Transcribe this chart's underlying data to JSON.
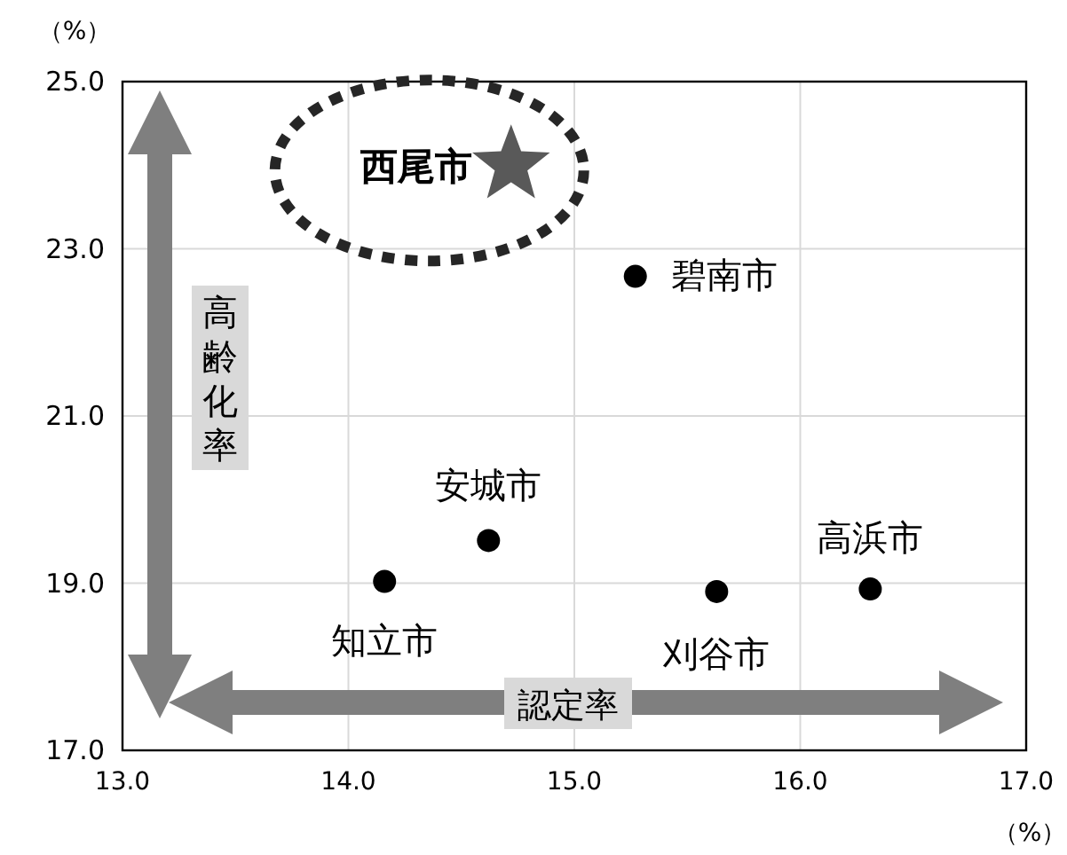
{
  "chart_data": {
    "type": "scatter",
    "xlabel": "認定率",
    "ylabel": "高齢化率",
    "annotations": [
      "（%）",
      "（%）"
    ],
    "series": [
      {
        "name": "西尾市",
        "x": [
          14.72
        ],
        "values": [
          24.0
        ],
        "color": "#595959",
        "marker": "star"
      },
      {
        "name": "碧南市",
        "x": [
          15.27
        ],
        "values": [
          22.67
        ],
        "color": "#000000",
        "marker": "circle"
      },
      {
        "name": "安城市",
        "x": [
          14.62
        ],
        "values": [
          19.51
        ],
        "color": "#000000",
        "marker": "circle"
      },
      {
        "name": "知立市",
        "x": [
          14.16
        ],
        "values": [
          19.02
        ],
        "color": "#000000",
        "marker": "circle"
      },
      {
        "name": "刈谷市",
        "x": [
          15.63
        ],
        "values": [
          18.9
        ],
        "color": "#000000",
        "marker": "circle"
      },
      {
        "name": "高浜市",
        "x": [
          16.31
        ],
        "values": [
          18.93
        ],
        "color": "#000000",
        "marker": "circle"
      }
    ],
    "xlim": [
      13,
      17
    ],
    "ylim": [
      17,
      25
    ],
    "xticks": [
      {
        "value": 13,
        "label": "13.0"
      },
      {
        "value": 14,
        "label": "14.0"
      },
      {
        "value": 15,
        "label": "15.0"
      },
      {
        "value": 16,
        "label": "16.0"
      },
      {
        "value": 17,
        "label": "17.0"
      }
    ],
    "yticks": [
      {
        "value": 17,
        "label": "17.0"
      },
      {
        "value": 19,
        "label": "19.0"
      },
      {
        "value": 21,
        "label": "21.0"
      },
      {
        "value": 23,
        "label": "23.0"
      },
      {
        "value": 25,
        "label": "25.0"
      }
    ],
    "grid": true
  }
}
